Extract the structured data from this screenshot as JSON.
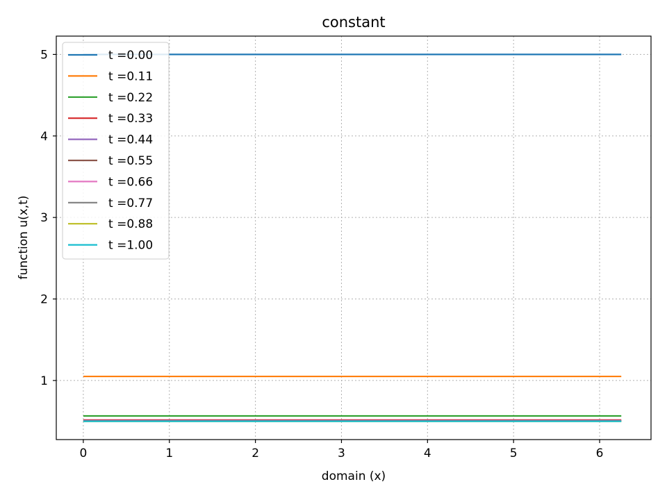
{
  "chart_data": {
    "type": "line",
    "title": "constant",
    "xlabel": "domain (x)",
    "ylabel": "function u(x,t)",
    "xlim": [
      -0.3142,
      6.5973
    ],
    "ylim": [
      0.275,
      5.225
    ],
    "xticks": [
      0,
      1,
      2,
      3,
      4,
      5,
      6
    ],
    "yticks": [
      1,
      2,
      3,
      4,
      5
    ],
    "grid": true,
    "legend_position": "upper left",
    "x": [
      0,
      6.2518
    ],
    "series": [
      {
        "name": "t =0.00",
        "color": "#1f77b4",
        "values": [
          5.0,
          5.0
        ]
      },
      {
        "name": "t =0.11",
        "color": "#ff7f0e",
        "values": [
          1.05,
          1.05
        ]
      },
      {
        "name": "t =0.22",
        "color": "#2ca02c",
        "values": [
          0.565,
          0.565
        ]
      },
      {
        "name": "t =0.33",
        "color": "#d62728",
        "values": [
          0.515,
          0.515
        ]
      },
      {
        "name": "t =0.44",
        "color": "#9467bd",
        "values": [
          0.507,
          0.507
        ]
      },
      {
        "name": "t =0.55",
        "color": "#8c564b",
        "values": [
          0.503,
          0.503
        ]
      },
      {
        "name": "t =0.66",
        "color": "#e377c2",
        "values": [
          0.502,
          0.502
        ]
      },
      {
        "name": "t =0.77",
        "color": "#7f7f7f",
        "values": [
          0.501,
          0.501
        ]
      },
      {
        "name": "t =0.88",
        "color": "#bcbd22",
        "values": [
          0.5,
          0.5
        ]
      },
      {
        "name": "t =1.00",
        "color": "#17becf",
        "values": [
          0.5,
          0.5
        ]
      }
    ]
  }
}
